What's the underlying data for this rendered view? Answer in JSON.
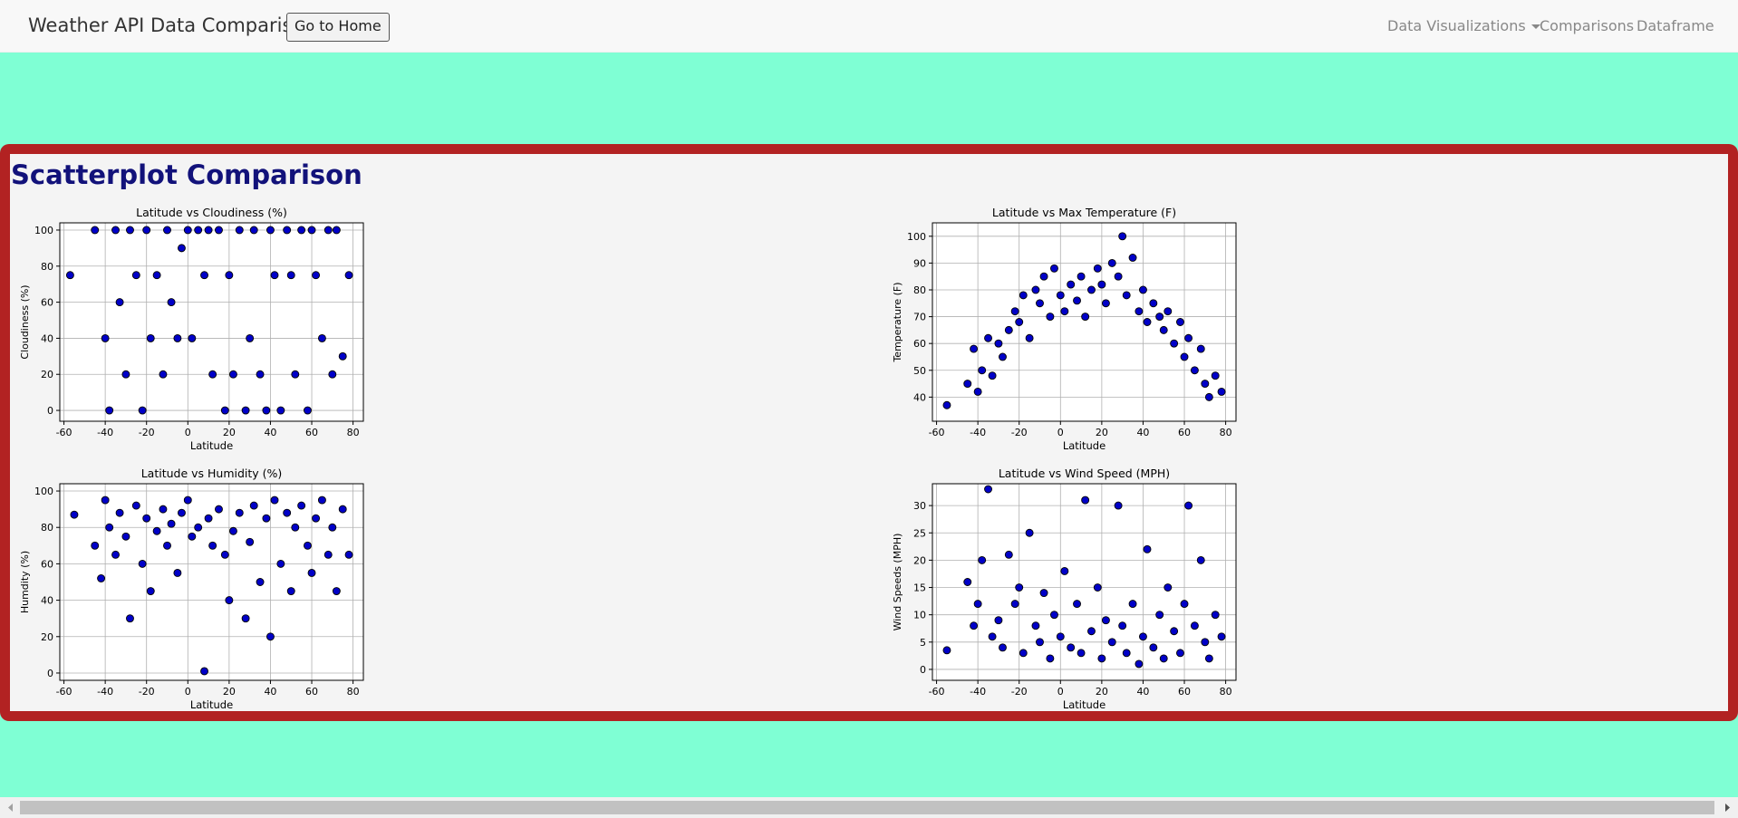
{
  "navbar": {
    "brand": "Weather API Data Comparison",
    "button": "Go to Home",
    "links": [
      "Data Visualizations",
      "Comparisons",
      "Dataframe"
    ]
  },
  "heading": "Scatterplot Comparison",
  "chart_data": [
    {
      "type": "scatter",
      "title": "Latitude vs Cloudiness (%)",
      "x_label": "Latitude",
      "y_label": "Cloudiness (%)",
      "color": "#0000c8",
      "edge_color": "#000000",
      "grid": true,
      "xlim": [
        -62,
        85
      ],
      "ylim": [
        -6,
        104
      ],
      "xticks": [
        -60,
        -40,
        -20,
        0,
        20,
        40,
        60,
        80
      ],
      "yticks": [
        0,
        20,
        40,
        60,
        80,
        100
      ],
      "x": [
        -57,
        -45,
        -40,
        -38,
        -35,
        -33,
        -30,
        -28,
        -25,
        -22,
        -20,
        -18,
        -15,
        -12,
        -10,
        -8,
        -5,
        -3,
        0,
        2,
        5,
        8,
        10,
        12,
        15,
        18,
        20,
        22,
        25,
        28,
        30,
        32,
        35,
        38,
        40,
        42,
        45,
        48,
        50,
        52,
        55,
        58,
        60,
        62,
        65,
        68,
        70,
        72,
        75,
        78
      ],
      "values": [
        75,
        100,
        40,
        0,
        100,
        60,
        20,
        100,
        75,
        0,
        100,
        40,
        75,
        20,
        100,
        60,
        40,
        90,
        100,
        40,
        100,
        75,
        100,
        20,
        100,
        0,
        75,
        20,
        100,
        0,
        40,
        100,
        20,
        0,
        100,
        75,
        0,
        100,
        75,
        20,
        100,
        0,
        100,
        75,
        40,
        100,
        20,
        100,
        30,
        75
      ]
    },
    {
      "type": "scatter",
      "title": "Latitude vs Max Temperature (F)",
      "x_label": "Latitude",
      "y_label": "Temperature (F)",
      "color": "#0000c8",
      "edge_color": "#000000",
      "grid": true,
      "xlim": [
        -62,
        85
      ],
      "ylim": [
        31,
        105
      ],
      "xticks": [
        -60,
        -40,
        -20,
        0,
        20,
        40,
        60,
        80
      ],
      "yticks": [
        40,
        50,
        60,
        70,
        80,
        90,
        100
      ],
      "x": [
        -55,
        -45,
        -42,
        -40,
        -38,
        -35,
        -33,
        -30,
        -28,
        -25,
        -22,
        -20,
        -18,
        -15,
        -12,
        -10,
        -8,
        -5,
        -3,
        0,
        2,
        5,
        8,
        10,
        12,
        15,
        18,
        20,
        22,
        25,
        28,
        30,
        32,
        35,
        38,
        40,
        42,
        45,
        48,
        50,
        52,
        55,
        58,
        60,
        62,
        65,
        68,
        70,
        72,
        75,
        78
      ],
      "values": [
        37,
        45,
        58,
        42,
        50,
        62,
        48,
        60,
        55,
        65,
        72,
        68,
        78,
        62,
        80,
        75,
        85,
        70,
        88,
        78,
        72,
        82,
        76,
        85,
        70,
        80,
        88,
        82,
        75,
        90,
        85,
        100,
        78,
        92,
        72,
        80,
        68,
        75,
        70,
        65,
        72,
        60,
        68,
        55,
        62,
        50,
        58,
        45,
        40,
        48,
        42
      ]
    },
    {
      "type": "scatter",
      "title": "Latitude vs Humidity (%)",
      "x_label": "Latitude",
      "y_label": "Humdity (%)",
      "color": "#0000c8",
      "edge_color": "#000000",
      "grid": true,
      "xlim": [
        -62,
        85
      ],
      "ylim": [
        -4,
        104
      ],
      "xticks": [
        -60,
        -40,
        -20,
        0,
        20,
        40,
        60,
        80
      ],
      "yticks": [
        0,
        20,
        40,
        60,
        80,
        100
      ],
      "x": [
        -55,
        -45,
        -42,
        -40,
        -38,
        -35,
        -33,
        -30,
        -28,
        -25,
        -22,
        -20,
        -18,
        -15,
        -12,
        -10,
        -8,
        -5,
        -3,
        0,
        2,
        5,
        8,
        10,
        12,
        15,
        18,
        20,
        22,
        25,
        28,
        30,
        32,
        35,
        38,
        40,
        42,
        45,
        48,
        50,
        52,
        55,
        58,
        60,
        62,
        65,
        68,
        70,
        72,
        75,
        78
      ],
      "values": [
        87,
        70,
        52,
        95,
        80,
        65,
        88,
        75,
        30,
        92,
        60,
        85,
        45,
        78,
        90,
        70,
        82,
        55,
        88,
        95,
        75,
        80,
        1,
        85,
        70,
        90,
        65,
        40,
        78,
        88,
        30,
        72,
        92,
        50,
        85,
        20,
        95,
        60,
        88,
        45,
        80,
        92,
        70,
        55,
        85,
        95,
        65,
        80,
        45,
        90,
        65
      ]
    },
    {
      "type": "scatter",
      "title": "Latitude vs Wind Speed (MPH)",
      "x_label": "Latitude",
      "y_label": "Wind Speeds (MPH)",
      "color": "#0000c8",
      "edge_color": "#000000",
      "grid": true,
      "xlim": [
        -62,
        85
      ],
      "ylim": [
        -2,
        34
      ],
      "xticks": [
        -60,
        -40,
        -20,
        0,
        20,
        40,
        60,
        80
      ],
      "yticks": [
        0,
        5,
        10,
        15,
        20,
        25,
        30
      ],
      "x": [
        -55,
        -45,
        -42,
        -40,
        -38,
        -35,
        -33,
        -30,
        -28,
        -25,
        -22,
        -20,
        -18,
        -15,
        -12,
        -10,
        -8,
        -5,
        -3,
        0,
        2,
        5,
        8,
        10,
        12,
        15,
        18,
        20,
        22,
        25,
        28,
        30,
        32,
        35,
        38,
        40,
        42,
        45,
        48,
        50,
        52,
        55,
        58,
        60,
        62,
        65,
        68,
        70,
        72,
        75,
        78
      ],
      "values": [
        3.5,
        16,
        8,
        12,
        20,
        33,
        6,
        9,
        4,
        21,
        12,
        15,
        3,
        25,
        8,
        5,
        14,
        2,
        10,
        6,
        18,
        4,
        12,
        3,
        31,
        7,
        15,
        2,
        9,
        5,
        30,
        8,
        3,
        12,
        1,
        6,
        22,
        4,
        10,
        2,
        15,
        7,
        3,
        12,
        30,
        8,
        20,
        5,
        2,
        10,
        6
      ]
    }
  ]
}
